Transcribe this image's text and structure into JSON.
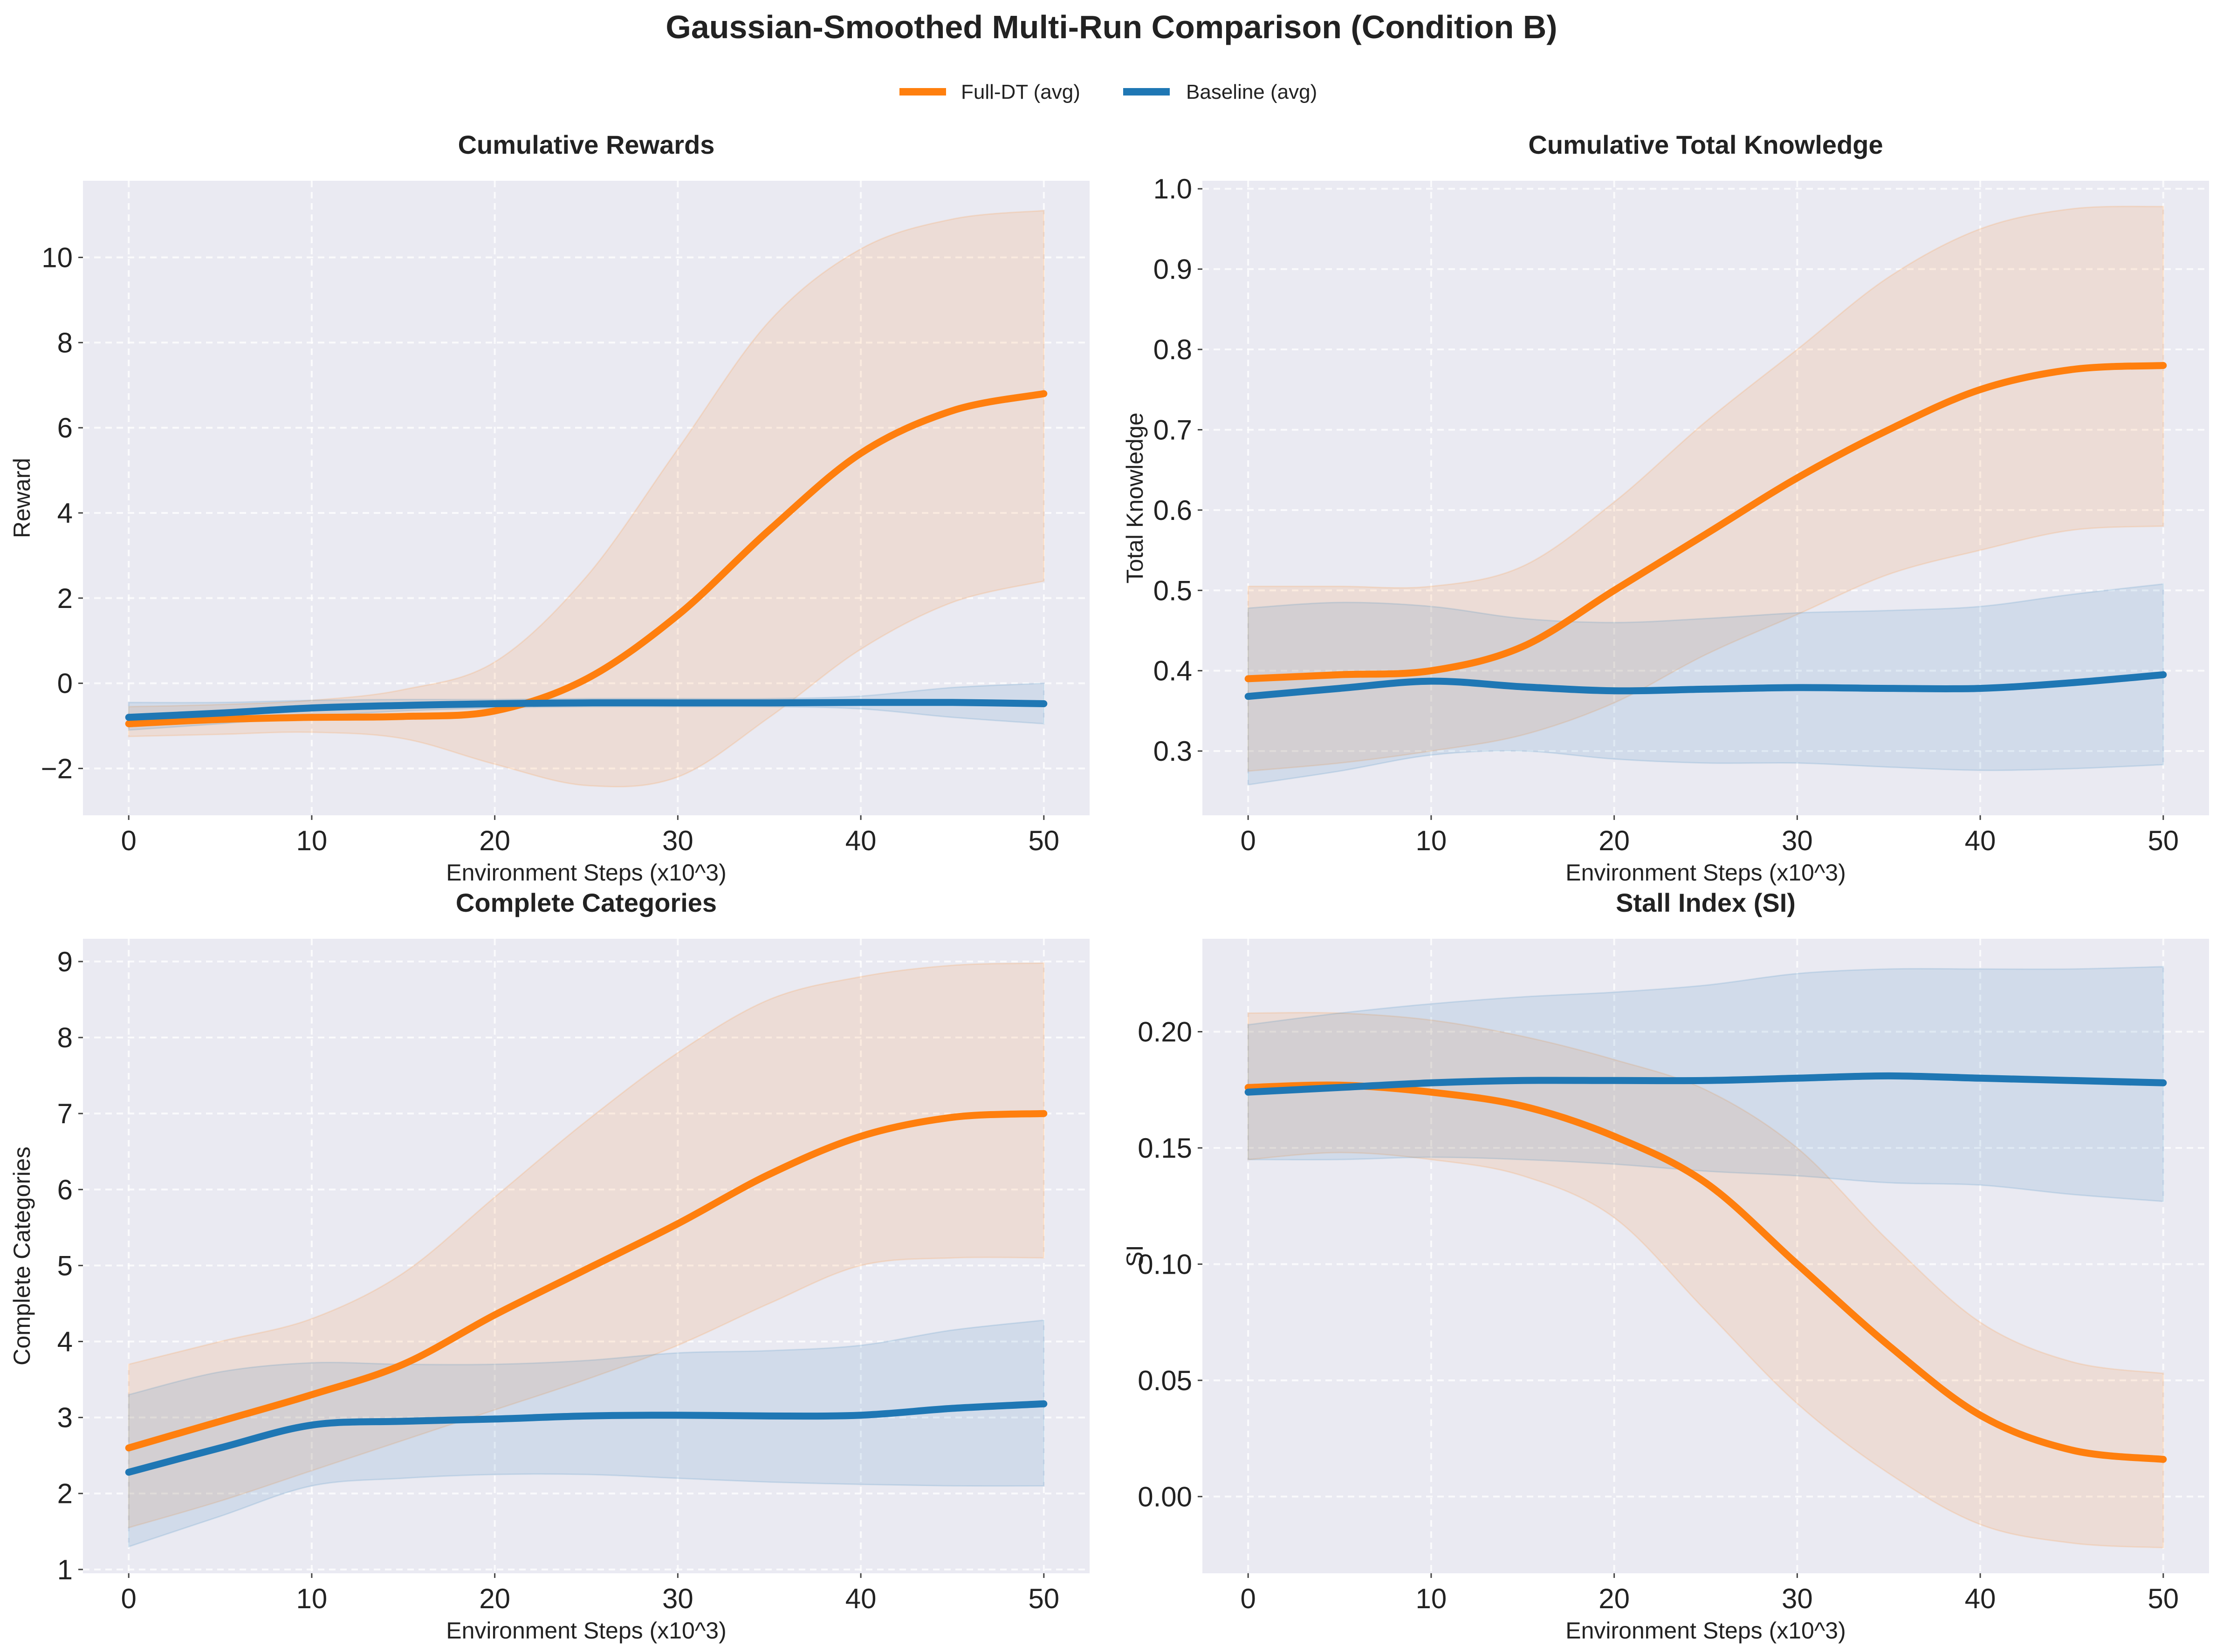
{
  "figure": {
    "title": "Gaussian-Smoothed Multi-Run Comparison (Condition B)",
    "legend": [
      {
        "label": "Full-DT (avg)",
        "color": "#ff7f0e"
      },
      {
        "label": "Baseline (avg)",
        "color": "#1f77b4"
      }
    ]
  },
  "chart_data": [
    {
      "type": "line",
      "title": "Cumulative Rewards",
      "xlabel": "Environment Steps (x10^3)",
      "ylabel": "Reward",
      "xlim": [
        -2.5,
        52.5
      ],
      "ylim": [
        -3.1,
        11.8
      ],
      "xticks": [
        0,
        10,
        20,
        30,
        40,
        50
      ],
      "yticks": [
        -2,
        0,
        2,
        4,
        6,
        8,
        10
      ],
      "ytick_labels": [
        "−2",
        "0",
        "2",
        "4",
        "6",
        "8",
        "10"
      ],
      "grid": true,
      "x": [
        0,
        5,
        10,
        15,
        20,
        25,
        30,
        35,
        40,
        45,
        50
      ],
      "series": [
        {
          "name": "Full-DT (avg)",
          "color": "#ff7f0e",
          "values": [
            -0.95,
            -0.85,
            -0.8,
            -0.78,
            -0.65,
            0.1,
            1.6,
            3.6,
            5.4,
            6.4,
            6.8
          ],
          "upper": [
            -0.55,
            -0.5,
            -0.4,
            -0.15,
            0.5,
            2.5,
            5.5,
            8.5,
            10.2,
            10.9,
            11.1
          ],
          "lower": [
            -1.25,
            -1.2,
            -1.15,
            -1.3,
            -1.9,
            -2.4,
            -2.2,
            -0.8,
            0.8,
            1.9,
            2.4
          ]
        },
        {
          "name": "Baseline (avg)",
          "color": "#1f77b4",
          "values": [
            -0.8,
            -0.7,
            -0.58,
            -0.52,
            -0.48,
            -0.46,
            -0.46,
            -0.46,
            -0.45,
            -0.45,
            -0.48
          ],
          "upper": [
            -0.45,
            -0.45,
            -0.4,
            -0.38,
            -0.38,
            -0.36,
            -0.36,
            -0.36,
            -0.3,
            -0.1,
            0.0
          ],
          "lower": [
            -1.1,
            -0.95,
            -0.78,
            -0.65,
            -0.58,
            -0.55,
            -0.55,
            -0.55,
            -0.6,
            -0.8,
            -0.95
          ]
        }
      ]
    },
    {
      "type": "line",
      "title": "Cumulative Total Knowledge",
      "xlabel": "Environment Steps (x10^3)",
      "ylabel": "Total Knowledge",
      "xlim": [
        -2.5,
        52.5
      ],
      "ylim": [
        0.22,
        1.01
      ],
      "xticks": [
        0,
        10,
        20,
        30,
        40,
        50
      ],
      "yticks": [
        0.3,
        0.4,
        0.5,
        0.6,
        0.7,
        0.8,
        0.9,
        1.0
      ],
      "ytick_labels": [
        "0.3",
        "0.4",
        "0.5",
        "0.6",
        "0.7",
        "0.8",
        "0.9",
        "1.0"
      ],
      "grid": true,
      "x": [
        0,
        5,
        10,
        15,
        20,
        25,
        30,
        35,
        40,
        45,
        50
      ],
      "series": [
        {
          "name": "Full-DT (avg)",
          "color": "#ff7f0e",
          "values": [
            0.39,
            0.395,
            0.4,
            0.43,
            0.5,
            0.57,
            0.64,
            0.7,
            0.75,
            0.775,
            0.78
          ],
          "upper": [
            0.505,
            0.505,
            0.505,
            0.53,
            0.61,
            0.71,
            0.8,
            0.89,
            0.95,
            0.975,
            0.978
          ],
          "lower": [
            0.275,
            0.285,
            0.3,
            0.32,
            0.36,
            0.42,
            0.47,
            0.52,
            0.55,
            0.575,
            0.58
          ]
        },
        {
          "name": "Baseline (avg)",
          "color": "#1f77b4",
          "values": [
            0.368,
            0.378,
            0.387,
            0.38,
            0.375,
            0.377,
            0.379,
            0.378,
            0.378,
            0.385,
            0.395
          ],
          "upper": [
            0.478,
            0.485,
            0.48,
            0.465,
            0.46,
            0.465,
            0.472,
            0.475,
            0.48,
            0.495,
            0.508
          ],
          "lower": [
            0.258,
            0.275,
            0.295,
            0.3,
            0.29,
            0.285,
            0.285,
            0.28,
            0.276,
            0.278,
            0.283
          ]
        }
      ]
    },
    {
      "type": "line",
      "title": "Complete Categories",
      "xlabel": "Environment Steps (x10^3)",
      "ylabel": "Complete Categories",
      "xlim": [
        -2.5,
        52.5
      ],
      "ylim": [
        0.95,
        9.3
      ],
      "xticks": [
        0,
        10,
        20,
        30,
        40,
        50
      ],
      "yticks": [
        1,
        2,
        3,
        4,
        5,
        6,
        7,
        8,
        9
      ],
      "ytick_labels": [
        "1",
        "2",
        "3",
        "4",
        "5",
        "6",
        "7",
        "8",
        "9"
      ],
      "grid": true,
      "x": [
        0,
        5,
        10,
        15,
        20,
        25,
        30,
        35,
        40,
        45,
        50
      ],
      "series": [
        {
          "name": "Full-DT (avg)",
          "color": "#ff7f0e",
          "values": [
            2.6,
            2.95,
            3.3,
            3.7,
            4.35,
            4.95,
            5.55,
            6.2,
            6.7,
            6.95,
            7.0
          ],
          "upper": [
            3.7,
            4.0,
            4.3,
            4.9,
            5.9,
            6.9,
            7.8,
            8.5,
            8.8,
            8.95,
            8.98
          ],
          "lower": [
            1.55,
            1.9,
            2.3,
            2.7,
            3.1,
            3.5,
            3.95,
            4.5,
            5.0,
            5.1,
            5.1
          ]
        },
        {
          "name": "Baseline (avg)",
          "color": "#1f77b4",
          "values": [
            2.28,
            2.6,
            2.9,
            2.95,
            2.98,
            3.02,
            3.03,
            3.02,
            3.03,
            3.12,
            3.18
          ],
          "upper": [
            3.3,
            3.6,
            3.72,
            3.7,
            3.7,
            3.75,
            3.85,
            3.88,
            3.95,
            4.15,
            4.28
          ],
          "lower": [
            1.3,
            1.7,
            2.1,
            2.2,
            2.25,
            2.25,
            2.2,
            2.15,
            2.12,
            2.1,
            2.1
          ]
        }
      ]
    },
    {
      "type": "line",
      "title": "Stall Index (SI)",
      "xlabel": "Environment Steps (x10^3)",
      "ylabel": "SI",
      "xlim": [
        -2.5,
        52.5
      ],
      "ylim": [
        -0.033,
        0.24
      ],
      "xticks": [
        0,
        10,
        20,
        30,
        40,
        50
      ],
      "yticks": [
        0.0,
        0.05,
        0.1,
        0.15,
        0.2
      ],
      "ytick_labels": [
        "0.00",
        "0.05",
        "0.10",
        "0.15",
        "0.20"
      ],
      "grid": true,
      "x": [
        0,
        5,
        10,
        15,
        20,
        25,
        30,
        35,
        40,
        45,
        50
      ],
      "series": [
        {
          "name": "Full-DT (avg)",
          "color": "#ff7f0e",
          "values": [
            0.176,
            0.177,
            0.174,
            0.168,
            0.155,
            0.135,
            0.1,
            0.065,
            0.035,
            0.02,
            0.016
          ],
          "upper": [
            0.208,
            0.208,
            0.205,
            0.198,
            0.188,
            0.175,
            0.15,
            0.11,
            0.075,
            0.058,
            0.053
          ],
          "lower": [
            0.145,
            0.148,
            0.145,
            0.138,
            0.12,
            0.08,
            0.04,
            0.01,
            -0.012,
            -0.02,
            -0.022
          ]
        },
        {
          "name": "Baseline (avg)",
          "color": "#1f77b4",
          "values": [
            0.174,
            0.176,
            0.178,
            0.179,
            0.179,
            0.179,
            0.18,
            0.181,
            0.18,
            0.179,
            0.178
          ],
          "upper": [
            0.203,
            0.208,
            0.212,
            0.215,
            0.217,
            0.22,
            0.225,
            0.227,
            0.227,
            0.227,
            0.228
          ],
          "lower": [
            0.145,
            0.145,
            0.146,
            0.145,
            0.143,
            0.14,
            0.138,
            0.135,
            0.134,
            0.13,
            0.127
          ]
        }
      ]
    }
  ]
}
